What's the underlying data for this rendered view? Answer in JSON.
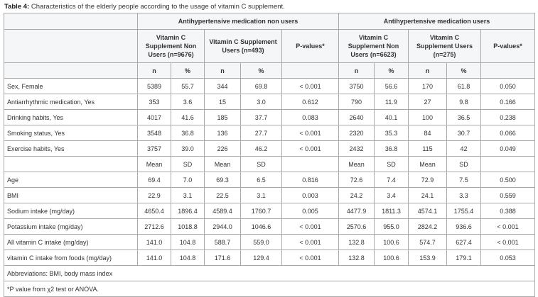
{
  "caption": {
    "label": "Table 4:",
    "text": "Characteristics of the elderly people according to the usage of vitamin C supplement."
  },
  "header": {
    "group_non": "Antihypertensive medication non users",
    "group_users": "Antihypertensive medication users",
    "col_vc_non_users_1": "Vitamin C Supplement Non Users (n=9676)",
    "col_vc_users_1": "Vitamin C Supplement Users (n=493)",
    "col_p_1": "P-values*",
    "col_vc_non_users_2": "Vitamin C Supplement Non Users (n=6623)",
    "col_vc_users_2": "Vitamin C Supplement Users (n=275)",
    "col_p_2": "P-values*",
    "n": "n",
    "pct": "%"
  },
  "rows_categorical": [
    {
      "label": "Sex, Female",
      "v": [
        "5389",
        "55.7",
        "344",
        "69.8",
        "< 0.001",
        "3750",
        "56.6",
        "170",
        "61.8",
        "0.050"
      ]
    },
    {
      "label": "Antiarrhythmic medication, Yes",
      "v": [
        "353",
        "3.6",
        "15",
        "3.0",
        "0.612",
        "790",
        "11.9",
        "27",
        "9.8",
        "0.166"
      ]
    },
    {
      "label": "Drinking habits, Yes",
      "v": [
        "4017",
        "41.6",
        "185",
        "37.7",
        "0.083",
        "2640",
        "40.1",
        "100",
        "36.5",
        "0.238"
      ]
    },
    {
      "label": "Smoking status, Yes",
      "v": [
        "3548",
        "36.8",
        "136",
        "27.7",
        "< 0.001",
        "2320",
        "35.3",
        "84",
        "30.7",
        "0.066"
      ]
    },
    {
      "label": "Exercise habits, Yes",
      "v": [
        "3757",
        "39.0",
        "226",
        "46.2",
        "< 0.001",
        "2432",
        "36.8",
        "115",
        "42",
        "0.049"
      ]
    }
  ],
  "subheader_continuous": {
    "mean": "Mean",
    "sd": "SD"
  },
  "rows_continuous": [
    {
      "label": "Age",
      "v": [
        "69.4",
        "7.0",
        "69.3",
        "6.5",
        "0.816",
        "72.6",
        "7.4",
        "72.9",
        "7.5",
        "0.500"
      ]
    },
    {
      "label": "BMI",
      "v": [
        "22.9",
        "3.1",
        "22.5",
        "3.1",
        "0.003",
        "24.2",
        "3.4",
        "24.1",
        "3.3",
        "0.559"
      ]
    },
    {
      "label": "Sodium intake (mg/day)",
      "v": [
        "4650.4",
        "1896.4",
        "4589.4",
        "1760.7",
        "0.005",
        "4477.9",
        "1811.3",
        "4574.1",
        "1755.4",
        "0.388"
      ]
    },
    {
      "label": "Potassium intake (mg/day)",
      "v": [
        "2712.6",
        "1018.8",
        "2944.0",
        "1046.6",
        "< 0.001",
        "2570.6",
        "955.0",
        "2824.2",
        "936.6",
        "< 0.001"
      ]
    },
    {
      "label": "All vitamin C intake (mg/day)",
      "v": [
        "141.0",
        "104.8",
        "588.7",
        "559.0",
        "< 0.001",
        "132.8",
        "100.6",
        "574.7",
        "627.4",
        "< 0.001"
      ]
    },
    {
      "label": "vitamin C intake from foods (mg/day)",
      "v": [
        "141.0",
        "104.8",
        "171.6",
        "129.4",
        "< 0.001",
        "132.8",
        "100.6",
        "153.9",
        "179.1",
        "0.053"
      ]
    }
  ],
  "notes": {
    "abbreviations": "Abbreviations: BMI, body mass index",
    "pvalue": "*P value from χ2 test or ANOVA."
  }
}
